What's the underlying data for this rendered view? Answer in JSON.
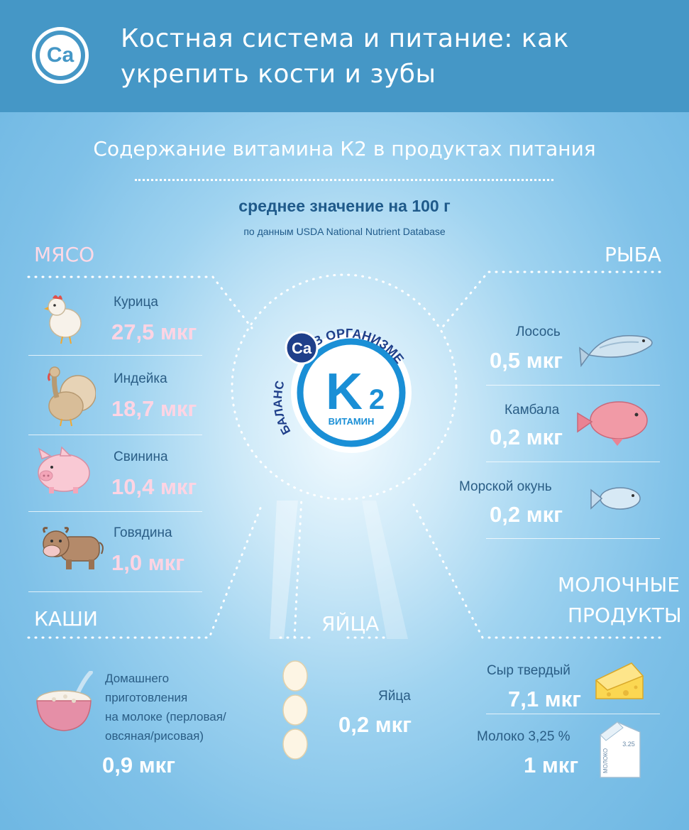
{
  "header": {
    "logo_text": "Ca",
    "title": "Костная система и питание: как укрепить кости и зубы"
  },
  "subtitle": "Содержание витамина К2 в продуктах питания",
  "average": "среднее значение на 100 г",
  "source": "по данным USDA National Nutrient Database",
  "center_badge": {
    "ca": "Ca",
    "arc_left": "БАЛАНС",
    "arc_top": "В ОРГАНИЗМЕ",
    "k2": "K",
    "k2_sub": "2",
    "vitamin": "ВИТАМИН"
  },
  "categories": {
    "meat": "МЯСО",
    "fish": "РЫБА",
    "porridge": "КАШИ",
    "eggs": "ЯЙЦА",
    "dairy_line1": "МОЛОЧНЫЕ",
    "dairy_line2": "ПРОДУКТЫ"
  },
  "meat": [
    {
      "name": "Курица",
      "value": "27,5 мкг",
      "icon": "chicken-icon"
    },
    {
      "name": "Индейка",
      "value": "18,7 мкг",
      "icon": "turkey-icon"
    },
    {
      "name": "Свинина",
      "value": "10,4 мкг",
      "icon": "pig-icon"
    },
    {
      "name": "Говядина",
      "value": "1,0 мкг",
      "icon": "cow-icon"
    }
  ],
  "fish": [
    {
      "name": "Лосось",
      "value": "0,5 мкг",
      "icon": "salmon-icon"
    },
    {
      "name": "Камбала",
      "value": "0,2 мкг",
      "icon": "flounder-icon"
    },
    {
      "name": "Морской окунь",
      "value": "0,2 мкг",
      "icon": "sea-bass-icon"
    }
  ],
  "porridge": {
    "name_lines": [
      "Домашнего",
      "приготовления",
      "на молоке (перловая/",
      "овсяная/рисовая)"
    ],
    "value": "0,9 мкг"
  },
  "eggs": {
    "name": "Яйца",
    "value": "0,2 мкг"
  },
  "dairy": [
    {
      "name": "Сыр твердый",
      "value": "7,1 мкг",
      "icon": "cheese-icon"
    },
    {
      "name": "Молоко 3,25 %",
      "value": "1 мкг",
      "icon": "milk-carton-icon"
    }
  ],
  "milk_box": {
    "brand": "МОЛОКО",
    "fat": "3.25"
  },
  "colors": {
    "header": "#4597c6",
    "dark_text": "#2a5d85",
    "pink_value": "#ffd4e3",
    "badge_blue": "#1a8fd6",
    "navy": "#1f3f8a"
  }
}
